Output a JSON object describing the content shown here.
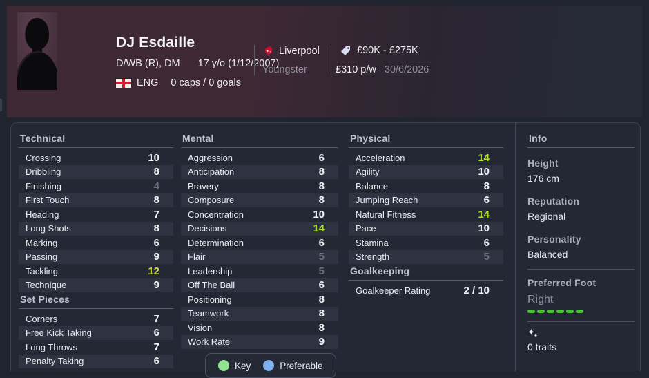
{
  "header": {
    "name": "DJ Esdaille",
    "position": "D/WB (R), DM",
    "age": "17 y/o (1/12/2007)",
    "nation_code": "ENG",
    "caps_goals": "0 caps / 0 goals",
    "club": "Liverpool",
    "squad_status": "Youngster",
    "value_range": "£90K - £275K",
    "wage": "£310 p/w",
    "contract_end": "30/6/2026"
  },
  "attributes": {
    "technical": {
      "title": "Technical",
      "rows": [
        {
          "label": "Crossing",
          "value": 10
        },
        {
          "label": "Dribbling",
          "value": 8
        },
        {
          "label": "Finishing",
          "value": 4
        },
        {
          "label": "First Touch",
          "value": 8
        },
        {
          "label": "Heading",
          "value": 7
        },
        {
          "label": "Long Shots",
          "value": 8
        },
        {
          "label": "Marking",
          "value": 6
        },
        {
          "label": "Passing",
          "value": 9
        },
        {
          "label": "Tackling",
          "value": 12
        },
        {
          "label": "Technique",
          "value": 9
        }
      ]
    },
    "set_pieces": {
      "title": "Set Pieces",
      "rows": [
        {
          "label": "Corners",
          "value": 7
        },
        {
          "label": "Free Kick Taking",
          "value": 6
        },
        {
          "label": "Long Throws",
          "value": 7
        },
        {
          "label": "Penalty Taking",
          "value": 6
        }
      ]
    },
    "mental": {
      "title": "Mental",
      "rows": [
        {
          "label": "Aggression",
          "value": 6
        },
        {
          "label": "Anticipation",
          "value": 8
        },
        {
          "label": "Bravery",
          "value": 8
        },
        {
          "label": "Composure",
          "value": 8
        },
        {
          "label": "Concentration",
          "value": 10
        },
        {
          "label": "Decisions",
          "value": 14
        },
        {
          "label": "Determination",
          "value": 6
        },
        {
          "label": "Flair",
          "value": 5
        },
        {
          "label": "Leadership",
          "value": 5
        },
        {
          "label": "Off The Ball",
          "value": 6
        },
        {
          "label": "Positioning",
          "value": 8
        },
        {
          "label": "Teamwork",
          "value": 8
        },
        {
          "label": "Vision",
          "value": 8
        },
        {
          "label": "Work Rate",
          "value": 9
        }
      ]
    },
    "physical": {
      "title": "Physical",
      "rows": [
        {
          "label": "Acceleration",
          "value": 14
        },
        {
          "label": "Agility",
          "value": 10
        },
        {
          "label": "Balance",
          "value": 8
        },
        {
          "label": "Jumping Reach",
          "value": 6
        },
        {
          "label": "Natural Fitness",
          "value": 14
        },
        {
          "label": "Pace",
          "value": 10
        },
        {
          "label": "Stamina",
          "value": 6
        },
        {
          "label": "Strength",
          "value": 5
        }
      ]
    },
    "goalkeeping": {
      "title": "Goalkeeping",
      "rows": [
        {
          "label": "Goalkeeper Rating",
          "value": "2 / 10"
        }
      ]
    }
  },
  "info": {
    "title": "Info",
    "height_label": "Height",
    "height": "176 cm",
    "reputation_label": "Reputation",
    "reputation": "Regional",
    "personality_label": "Personality",
    "personality": "Balanced",
    "foot_label": "Preferred Foot",
    "foot": "Right",
    "foot_bar_segments": 6,
    "traits": "0 traits"
  },
  "legend": {
    "key_label": "Key",
    "preferable_label": "Preferable"
  },
  "colors": {
    "attribute_key": "#addf25",
    "attribute_good": "#ccdd30",
    "attribute_low": "#6b7180",
    "foot_bar_green": "#4cc13c",
    "legend_key_green": "#92e392",
    "legend_preferable_blue": "#7fb2f0",
    "header_maroon": "#3d2834",
    "panel_bg": "#232834",
    "row_stripe": "#2d3341"
  }
}
